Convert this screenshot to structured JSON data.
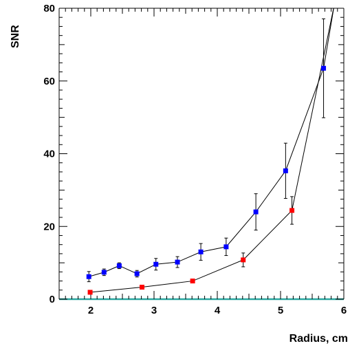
{
  "chart_data": {
    "type": "scatter",
    "xlabel": "Radius, cm",
    "ylabel": "SNR",
    "xlim": [
      1.5,
      6.0
    ],
    "ylim": [
      0,
      80
    ],
    "x_ticks": [
      2,
      3,
      4,
      5,
      6
    ],
    "y_ticks": [
      0,
      20,
      40,
      60,
      80
    ],
    "grid": false,
    "baseline_color": "#2aa7a0",
    "series": [
      {
        "color": "#0000ff",
        "marker": "square",
        "connect": "line",
        "points": [
          {
            "x": 1.97,
            "y": 6.2,
            "err": 1.4
          },
          {
            "x": 2.21,
            "y": 7.4,
            "err": 0.9
          },
          {
            "x": 2.45,
            "y": 9.2,
            "err": 0.8
          },
          {
            "x": 2.73,
            "y": 7.0,
            "err": 0.9
          },
          {
            "x": 3.03,
            "y": 9.6,
            "err": 1.6
          },
          {
            "x": 3.37,
            "y": 10.2,
            "err": 1.5
          },
          {
            "x": 3.74,
            "y": 13.0,
            "err": 2.3
          },
          {
            "x": 4.14,
            "y": 14.4,
            "err": 2.4
          },
          {
            "x": 4.61,
            "y": 24.0,
            "err": 5.0
          },
          {
            "x": 5.08,
            "y": 35.3,
            "err": 7.6
          },
          {
            "x": 5.68,
            "y": 63.5,
            "err": 13.6
          }
        ]
      },
      {
        "color": "#ff0000",
        "marker": "square",
        "connect": "line",
        "points": [
          {
            "x": 1.99,
            "y": 1.9,
            "err": 0
          },
          {
            "x": 2.81,
            "y": 3.3,
            "err": 0
          },
          {
            "x": 3.61,
            "y": 5.0,
            "err": 0
          },
          {
            "x": 4.41,
            "y": 10.8,
            "err": 1.9
          },
          {
            "x": 5.18,
            "y": 24.4,
            "err": 3.8
          }
        ]
      }
    ],
    "fit_curves": [
      {
        "color": "#000000",
        "x": [
          5.68,
          5.85
        ],
        "y": [
          63.5,
          81
        ]
      },
      {
        "color": "#000000",
        "x": [
          5.18,
          5.85
        ],
        "y": [
          24.4,
          81
        ]
      }
    ]
  }
}
